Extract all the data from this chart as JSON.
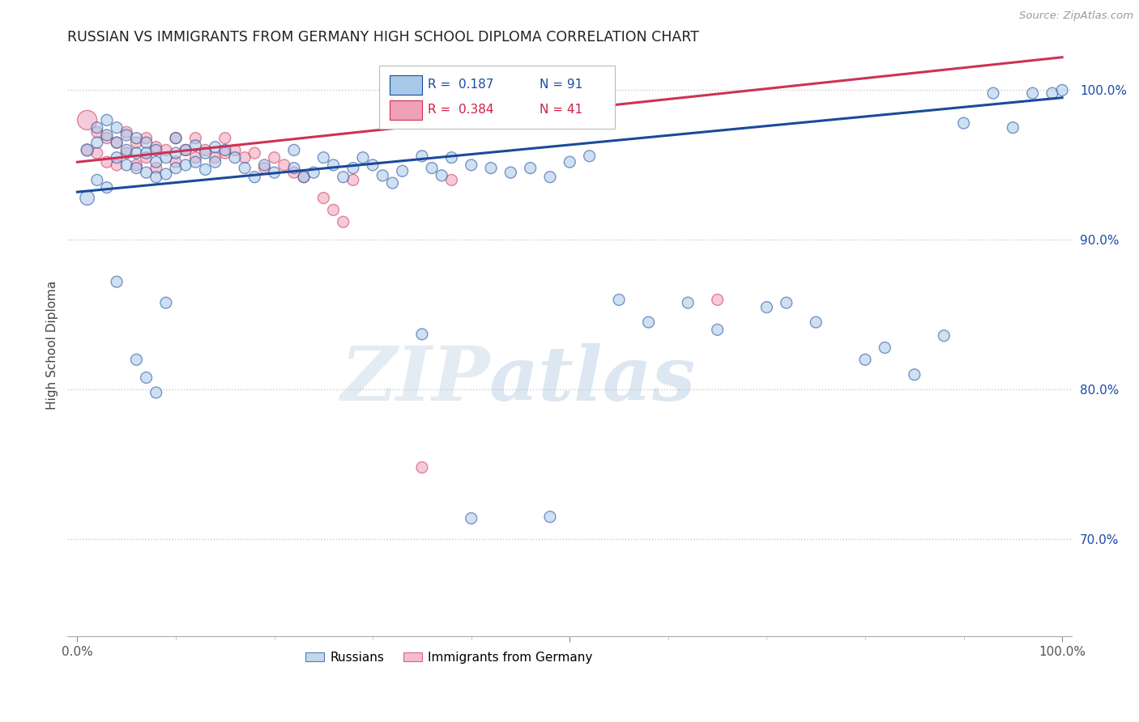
{
  "title": "RUSSIAN VS IMMIGRANTS FROM GERMANY HIGH SCHOOL DIPLOMA CORRELATION CHART",
  "source": "Source: ZipAtlas.com",
  "ylabel": "High School Diploma",
  "xlim": [
    -0.01,
    1.01
  ],
  "ylim": [
    0.635,
    1.025
  ],
  "yticks": [
    0.7,
    0.8,
    0.9,
    1.0
  ],
  "ytick_labels": [
    "70.0%",
    "80.0%",
    "90.0%",
    "100.0%"
  ],
  "blue_color": "#a8c8e8",
  "pink_color": "#f0a0b8",
  "blue_line_color": "#1a4a9a",
  "pink_line_color": "#cc3355",
  "blue_r_color": "#1a4aaa",
  "pink_r_color": "#cc2244",
  "watermark_zip": "ZIP",
  "watermark_atlas": "atlas",
  "blue_trend_x": [
    0.0,
    1.0
  ],
  "blue_trend_y": [
    0.932,
    0.995
  ],
  "pink_trend_x": [
    0.0,
    1.0
  ],
  "pink_trend_y": [
    0.952,
    1.022
  ],
  "blue_x": [
    0.01,
    0.02,
    0.02,
    0.03,
    0.03,
    0.04,
    0.04,
    0.04,
    0.05,
    0.05,
    0.05,
    0.06,
    0.06,
    0.06,
    0.07,
    0.07,
    0.07,
    0.08,
    0.08,
    0.08,
    0.09,
    0.09,
    0.1,
    0.1,
    0.1,
    0.11,
    0.11,
    0.12,
    0.12,
    0.13,
    0.13,
    0.14,
    0.14,
    0.15,
    0.16,
    0.17,
    0.18,
    0.19,
    0.2,
    0.22,
    0.22,
    0.23,
    0.24,
    0.25,
    0.26,
    0.27,
    0.28,
    0.29,
    0.3,
    0.31,
    0.32,
    0.33,
    0.35,
    0.36,
    0.37,
    0.38,
    0.4,
    0.42,
    0.44,
    0.46,
    0.48,
    0.5,
    0.52,
    0.55,
    0.58,
    0.62,
    0.65,
    0.7,
    0.72,
    0.75,
    0.8,
    0.82,
    0.85,
    0.88,
    0.9,
    0.93,
    0.95,
    0.97,
    0.99,
    1.0,
    0.01,
    0.02,
    0.03,
    0.04,
    0.06,
    0.07,
    0.08,
    0.09,
    0.35,
    0.4,
    0.48
  ],
  "blue_y": [
    0.96,
    0.975,
    0.965,
    0.98,
    0.97,
    0.975,
    0.965,
    0.955,
    0.97,
    0.96,
    0.95,
    0.968,
    0.958,
    0.948,
    0.965,
    0.958,
    0.945,
    0.96,
    0.952,
    0.942,
    0.955,
    0.944,
    0.968,
    0.958,
    0.948,
    0.96,
    0.95,
    0.963,
    0.952,
    0.958,
    0.947,
    0.962,
    0.952,
    0.96,
    0.955,
    0.948,
    0.942,
    0.95,
    0.945,
    0.948,
    0.96,
    0.942,
    0.945,
    0.955,
    0.95,
    0.942,
    0.948,
    0.955,
    0.95,
    0.943,
    0.938,
    0.946,
    0.956,
    0.948,
    0.943,
    0.955,
    0.95,
    0.948,
    0.945,
    0.948,
    0.942,
    0.952,
    0.956,
    0.86,
    0.845,
    0.858,
    0.84,
    0.855,
    0.858,
    0.845,
    0.82,
    0.828,
    0.81,
    0.836,
    0.978,
    0.998,
    0.975,
    0.998,
    0.998,
    1.0,
    0.928,
    0.94,
    0.935,
    0.872,
    0.82,
    0.808,
    0.798,
    0.858,
    0.837,
    0.714,
    0.715
  ],
  "blue_size": [
    120,
    100,
    100,
    100,
    100,
    100,
    100,
    100,
    100,
    100,
    100,
    100,
    100,
    100,
    100,
    100,
    100,
    100,
    100,
    100,
    100,
    100,
    100,
    100,
    100,
    100,
    100,
    100,
    100,
    100,
    100,
    100,
    100,
    100,
    100,
    100,
    100,
    100,
    100,
    100,
    100,
    100,
    100,
    100,
    100,
    100,
    100,
    100,
    100,
    100,
    100,
    100,
    100,
    100,
    100,
    100,
    100,
    100,
    100,
    100,
    100,
    100,
    100,
    100,
    100,
    100,
    100,
    100,
    100,
    100,
    100,
    100,
    100,
    100,
    100,
    100,
    100,
    100,
    100,
    100,
    160,
    100,
    100,
    100,
    100,
    100,
    100,
    100,
    100,
    100,
    100
  ],
  "pink_x": [
    0.01,
    0.01,
    0.02,
    0.02,
    0.03,
    0.03,
    0.04,
    0.04,
    0.05,
    0.05,
    0.06,
    0.06,
    0.07,
    0.07,
    0.08,
    0.08,
    0.09,
    0.1,
    0.1,
    0.11,
    0.12,
    0.12,
    0.13,
    0.14,
    0.15,
    0.15,
    0.16,
    0.17,
    0.18,
    0.19,
    0.2,
    0.21,
    0.22,
    0.23,
    0.25,
    0.26,
    0.27,
    0.28,
    0.35,
    0.38,
    0.65
  ],
  "pink_y": [
    0.98,
    0.96,
    0.972,
    0.958,
    0.968,
    0.952,
    0.965,
    0.95,
    0.972,
    0.958,
    0.965,
    0.95,
    0.968,
    0.955,
    0.962,
    0.948,
    0.96,
    0.968,
    0.952,
    0.96,
    0.968,
    0.955,
    0.96,
    0.955,
    0.968,
    0.958,
    0.96,
    0.955,
    0.958,
    0.948,
    0.955,
    0.95,
    0.945,
    0.942,
    0.928,
    0.92,
    0.912,
    0.94,
    0.748,
    0.94,
    0.86
  ],
  "pink_size": [
    300,
    100,
    100,
    100,
    100,
    100,
    100,
    100,
    100,
    100,
    100,
    100,
    100,
    100,
    100,
    100,
    100,
    100,
    100,
    100,
    100,
    100,
    100,
    100,
    100,
    100,
    100,
    100,
    100,
    100,
    100,
    100,
    100,
    100,
    100,
    100,
    100,
    100,
    100,
    100,
    100
  ]
}
